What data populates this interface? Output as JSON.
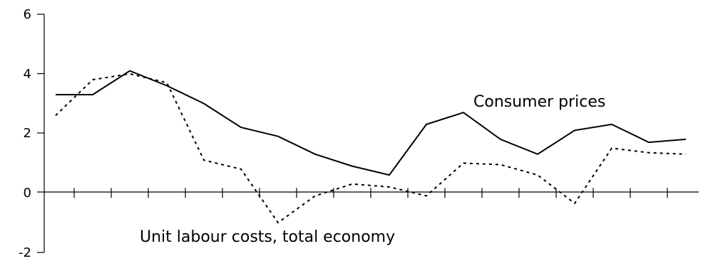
{
  "chart_data": {
    "type": "line",
    "title": "",
    "xlabel": "",
    "ylabel": "",
    "ylim": [
      -2,
      6
    ],
    "yticks": [
      6,
      4,
      2,
      0,
      -2
    ],
    "ytick_labels": [
      "6",
      "4",
      "2",
      "0",
      "-2"
    ],
    "grid": false,
    "legend": "none",
    "series": [
      {
        "name": "Consumer prices",
        "style": "solid",
        "color": "#000000",
        "values": [
          3.3,
          3.3,
          4.1,
          3.6,
          3.0,
          2.2,
          1.9,
          1.3,
          0.9,
          0.6,
          2.3,
          2.7,
          1.8,
          1.3,
          2.1,
          2.3,
          1.7,
          1.8
        ]
      },
      {
        "name": "Unit labour costs, total economy",
        "style": "dotted",
        "color": "#000000",
        "values": [
          2.6,
          3.8,
          4.0,
          3.7,
          1.1,
          0.8,
          -1.0,
          -0.1,
          0.3,
          0.2,
          -0.1,
          1.0,
          0.95,
          0.6,
          -0.35,
          1.5,
          1.35,
          1.3
        ]
      }
    ]
  }
}
